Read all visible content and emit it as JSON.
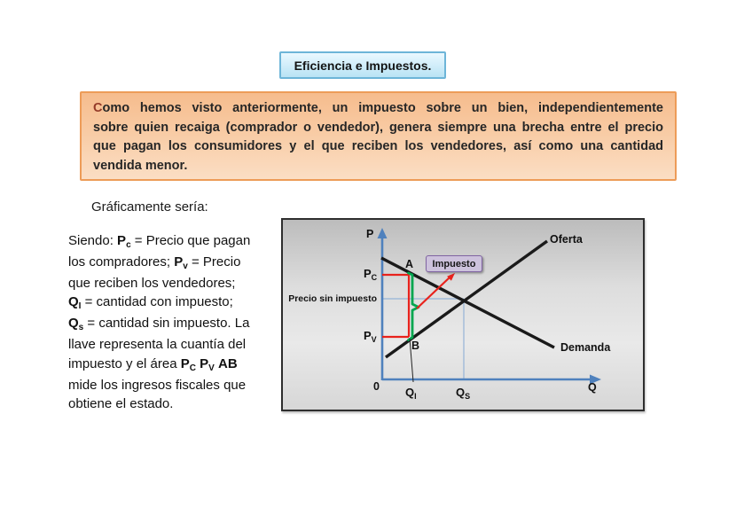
{
  "title": {
    "text": "Eficiencia e Impuestos."
  },
  "intro": {
    "first_letter": "C",
    "line1_rest": "omo hemos visto anteriormente, un impuesto sobre un bien, independientemente",
    "line2": "sobre quien recaiga (comprador o vendedor), genera siempre una brecha entre el precio",
    "line3": "que pagan los consumidores y el que reciben los vendedores, así como una cantidad",
    "line4": "vendida menor."
  },
  "left_block": {
    "heading": "Gráficamente sería:",
    "lines": [
      [
        {
          "t": "Siendo: "
        },
        {
          "t": "P",
          "b": true
        },
        {
          "t": "c",
          "b": true,
          "sub": true
        },
        {
          "t": " = Precio que pagan"
        }
      ],
      [
        {
          "t": "los compradores; "
        },
        {
          "t": "P",
          "b": true
        },
        {
          "t": "v",
          "b": true,
          "sub": true
        },
        {
          "t": " = Precio"
        }
      ],
      [
        {
          "t": "que reciben los vendedores;"
        }
      ],
      [
        {
          "t": "Q",
          "b": true
        },
        {
          "t": "I",
          "b": true,
          "sub": true
        },
        {
          "t": " = cantidad con impuesto;"
        }
      ],
      [
        {
          "t": "Q",
          "b": true
        },
        {
          "t": "s",
          "b": true,
          "sub": true
        },
        {
          "t": " = cantidad sin impuesto. La"
        }
      ],
      [
        {
          "t": "llave representa la cuantía del"
        }
      ],
      [
        {
          "t": "impuesto y el área "
        },
        {
          "t": "P",
          "b": true
        },
        {
          "t": "C",
          "b": true,
          "sub": true
        },
        {
          "t": " "
        },
        {
          "t": "P",
          "b": true
        },
        {
          "t": "V",
          "b": true,
          "sub": true
        },
        {
          "t": " "
        },
        {
          "t": "AB",
          "b": true
        }
      ],
      [
        {
          "t": "mide los ingresos fiscales que"
        }
      ],
      [
        {
          "t": "obtiene el estado."
        }
      ]
    ]
  },
  "chart": {
    "p_axis_label": "P",
    "q_axis_label": "Q",
    "origin_label": "0",
    "supply_label": "Oferta",
    "demand_label": "Demanda",
    "price_no_tax_label": "Precio sin impuesto",
    "tax_box_label": "Impuesto",
    "point_a": "A",
    "point_b": "B",
    "pc": {
      "main": "P",
      "sub": "C"
    },
    "pv": {
      "main": "P",
      "sub": "V"
    },
    "qi": {
      "main": "Q",
      "sub": "I"
    },
    "qs": {
      "main": "Q",
      "sub": "S"
    },
    "colors": {
      "axis_blue": "#4f81bd",
      "thin_blue": "#95b3d7",
      "curve_black": "#1a1a1a",
      "tax_red": "#e8221c",
      "brace_green": "#00a64f",
      "tax_box_fill": "#cdc2dc",
      "tax_box_border": "#8064a2",
      "title_border": "#6db5d8",
      "intro_border": "#ed9c58"
    }
  }
}
